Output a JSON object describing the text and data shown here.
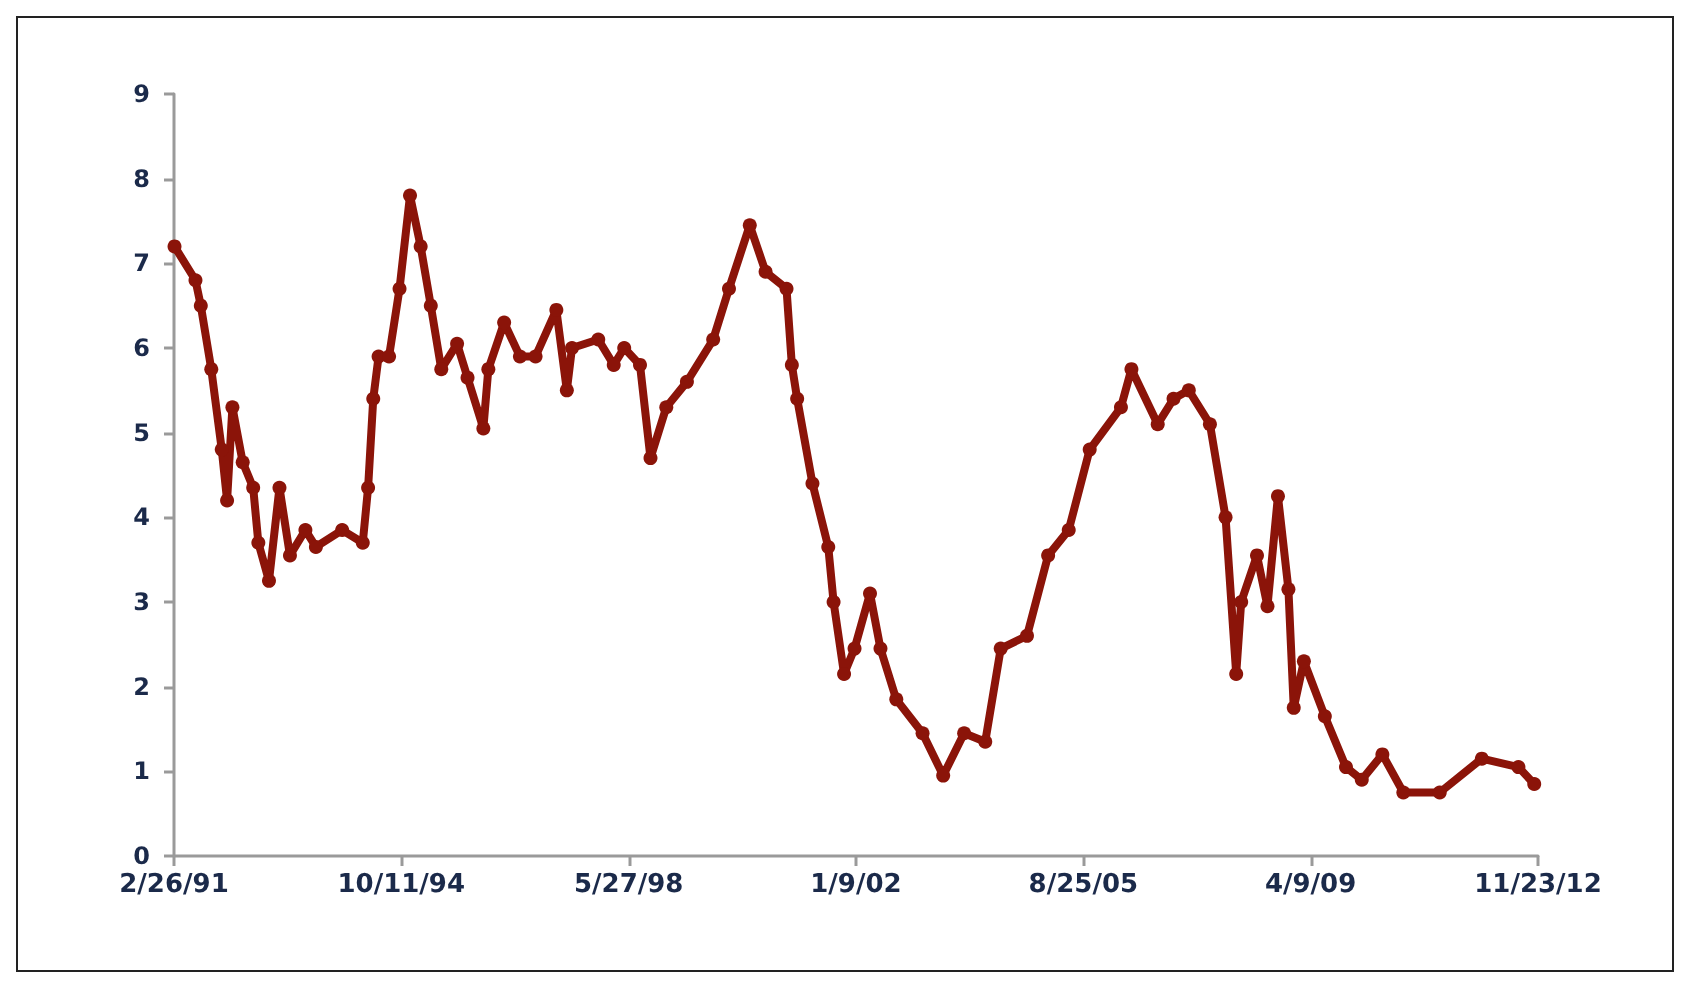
{
  "chart_data": {
    "type": "line",
    "marker": "circle",
    "grid": false,
    "xlim": [
      "1991-02-26",
      "2012-11-23"
    ],
    "xticks": [
      {
        "value": "1991-02-26",
        "label": "2/26/91"
      },
      {
        "value": "1994-10-11",
        "label": "10/11/94"
      },
      {
        "value": "1998-05-27",
        "label": "5/27/98"
      },
      {
        "value": "2002-01-09",
        "label": "1/9/02"
      },
      {
        "value": "2005-08-25",
        "label": "8/25/05"
      },
      {
        "value": "2009-04-09",
        "label": "4/9/09"
      },
      {
        "value": "2012-11-23",
        "label": "11/23/12"
      }
    ],
    "ylim": [
      0,
      9
    ],
    "yticks": [
      0,
      1,
      2,
      3,
      4,
      5,
      6,
      7,
      8,
      9
    ],
    "series": [
      {
        "color": "#8b1409",
        "x": [
          "1991-03",
          "1991-07",
          "1991-08",
          "1991-10",
          "1991-12",
          "1992-01",
          "1992-02",
          "1992-04",
          "1992-06",
          "1992-07",
          "1992-09",
          "1992-11",
          "1993-01",
          "1993-04",
          "1993-06",
          "1993-11",
          "1994-03",
          "1994-04",
          "1994-05",
          "1994-06",
          "1994-08",
          "1994-10",
          "1994-12",
          "1995-02",
          "1995-04",
          "1995-06",
          "1995-09",
          "1995-11",
          "1996-02",
          "1996-03",
          "1996-06",
          "1996-09",
          "1996-12",
          "1997-04",
          "1997-06",
          "1997-07",
          "1997-12",
          "1998-03",
          "1998-05",
          "1998-08",
          "1998-10",
          "1999-01",
          "1999-05",
          "1999-10",
          "2000-01",
          "2000-05",
          "2000-08",
          "2000-12",
          "2001-01",
          "2001-02",
          "2001-05",
          "2001-08",
          "2001-09",
          "2001-11",
          "2002-01",
          "2002-04",
          "2002-06",
          "2002-09",
          "2003-02",
          "2003-06",
          "2003-10",
          "2004-02",
          "2004-05",
          "2004-10",
          "2005-02",
          "2005-06",
          "2005-10",
          "2006-04",
          "2006-06",
          "2006-11",
          "2007-02",
          "2007-05",
          "2007-09",
          "2007-12",
          "2008-02",
          "2008-03",
          "2008-06",
          "2008-08",
          "2008-10",
          "2008-12",
          "2009-01",
          "2009-03",
          "2009-07",
          "2009-11",
          "2010-02",
          "2010-06",
          "2010-10",
          "2011-05",
          "2012-01",
          "2012-08",
          "2012-11"
        ],
        "values": [
          7.2,
          6.8,
          6.5,
          5.75,
          4.8,
          4.2,
          5.3,
          4.65,
          4.35,
          3.7,
          3.25,
          4.35,
          3.55,
          3.85,
          3.65,
          3.85,
          3.7,
          4.35,
          5.4,
          5.9,
          5.9,
          6.7,
          7.8,
          7.2,
          6.5,
          5.75,
          6.05,
          5.65,
          5.05,
          5.75,
          6.3,
          5.9,
          5.9,
          6.45,
          5.5,
          6.0,
          6.1,
          5.8,
          6.0,
          5.8,
          4.7,
          5.3,
          5.6,
          6.1,
          6.7,
          7.45,
          6.9,
          6.7,
          5.8,
          5.4,
          4.4,
          3.65,
          3.0,
          2.15,
          2.45,
          3.1,
          2.45,
          1.85,
          1.45,
          0.95,
          1.45,
          1.35,
          2.45,
          2.6,
          3.55,
          3.85,
          4.8,
          5.3,
          5.75,
          5.1,
          5.4,
          5.5,
          5.1,
          4.0,
          2.15,
          3.0,
          3.55,
          2.95,
          4.25,
          3.15,
          1.75,
          2.3,
          1.65,
          1.05,
          0.9,
          1.2,
          0.75,
          0.75,
          1.15,
          1.05,
          0.85
        ]
      }
    ]
  }
}
